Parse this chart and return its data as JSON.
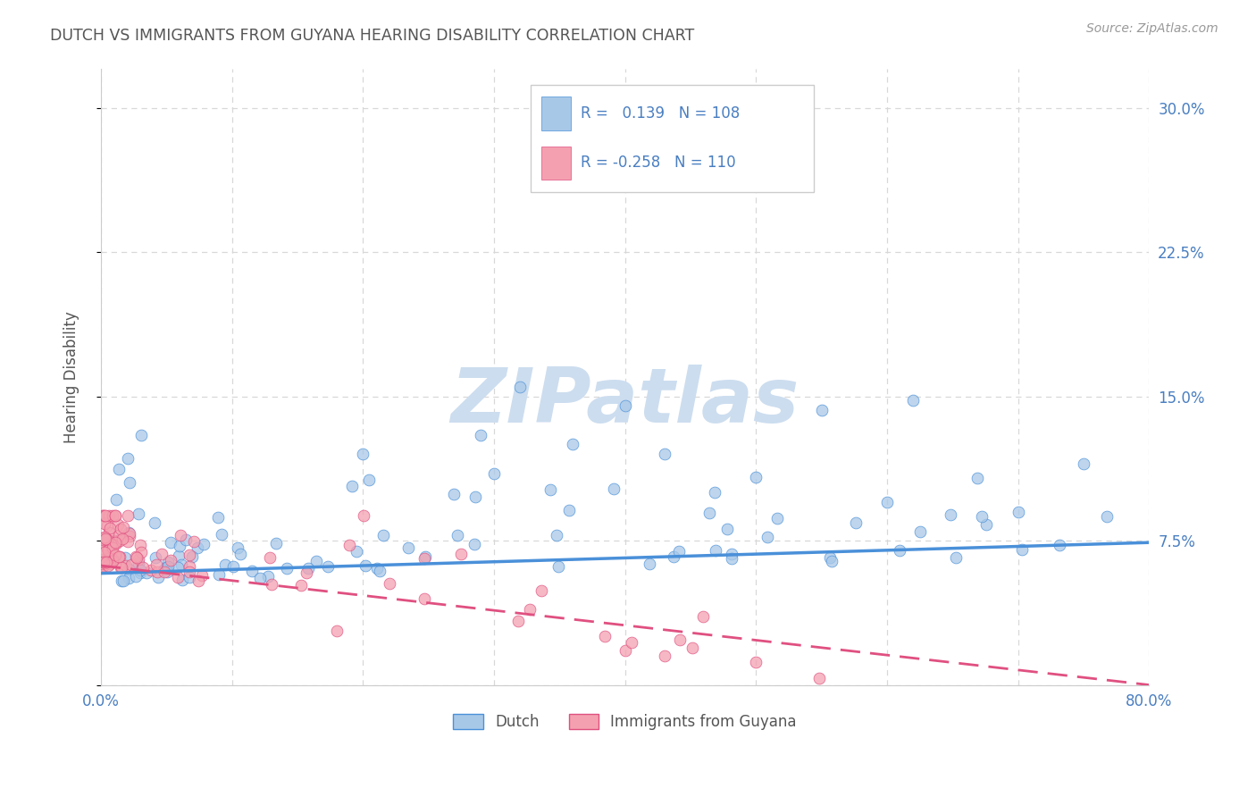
{
  "title": "DUTCH VS IMMIGRANTS FROM GUYANA HEARING DISABILITY CORRELATION CHART",
  "source": "Source: ZipAtlas.com",
  "ylabel": "Hearing Disability",
  "ytick_vals": [
    0.0,
    0.075,
    0.15,
    0.225,
    0.3
  ],
  "ytick_labels": [
    "",
    "7.5%",
    "15.0%",
    "22.5%",
    "30.0%"
  ],
  "xtick_vals": [
    0.0,
    0.1,
    0.2,
    0.3,
    0.4,
    0.5,
    0.6,
    0.7,
    0.8
  ],
  "xtick_labels": [
    "0.0%",
    "",
    "",
    "",
    "",
    "",
    "",
    "",
    "80.0%"
  ],
  "xlim": [
    0.0,
    0.8
  ],
  "ylim": [
    0.0,
    0.32
  ],
  "legend_dutch_r": "0.139",
  "legend_dutch_n": "108",
  "legend_guyana_r": "-0.258",
  "legend_guyana_n": "110",
  "dutch_color": "#a8c8e8",
  "guyana_color": "#f4a0b0",
  "dutch_line_color": "#4a90d9",
  "guyana_line_color": "#e05080",
  "legend_text_color": "#4a7fc1",
  "title_color": "#555555",
  "watermark_color": "#ccddef",
  "background_color": "#ffffff",
  "grid_color": "#d8d8d8",
  "tick_color": "#4a7fc1",
  "dutch_trend_x": [
    0.0,
    0.8
  ],
  "dutch_trend_y": [
    0.058,
    0.074
  ],
  "guyana_trend_x": [
    0.0,
    0.8
  ],
  "guyana_trend_y": [
    0.062,
    0.0
  ],
  "dutch_seed": 42,
  "guyana_seed": 99
}
